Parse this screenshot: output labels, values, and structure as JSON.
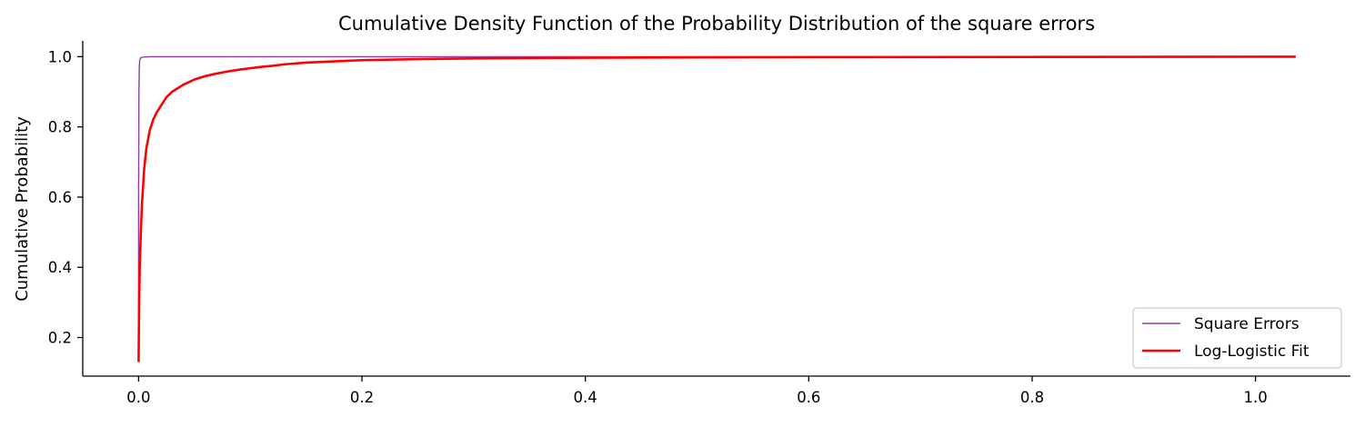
{
  "chart_data": {
    "type": "line",
    "title": "Cumulative Density Function of the Probability Distribution of the square errors",
    "xlabel": "",
    "ylabel": "Cumulative Probability",
    "xlim": [
      -0.05,
      1.085
    ],
    "ylim": [
      0.09,
      1.045
    ],
    "x_ticks": [
      0.0,
      0.2,
      0.4,
      0.6,
      0.8,
      1.0
    ],
    "x_tick_labels": [
      "0.0",
      "0.2",
      "0.4",
      "0.6",
      "0.8",
      "1.0"
    ],
    "y_ticks": [
      0.2,
      0.4,
      0.6,
      0.8,
      1.0
    ],
    "y_tick_labels": [
      "0.2",
      "0.4",
      "0.6",
      "0.8",
      "1.0"
    ],
    "grid": false,
    "legend": {
      "position": "lower-right"
    },
    "series": [
      {
        "name": "Square Errors",
        "color": "#8e3fa0",
        "style": "thin",
        "x": [
          0.0,
          0.0,
          0.0003,
          0.0006,
          0.001,
          0.002,
          0.004,
          0.01,
          0.05,
          0.2,
          0.5,
          1.036
        ],
        "y": [
          0.14,
          0.6,
          0.9,
          0.97,
          0.99,
          0.997,
          0.999,
          1.0,
          1.0,
          1.0,
          1.0,
          1.0
        ]
      },
      {
        "name": "Log-Logistic Fit",
        "color": "#ff0000",
        "style": "thick",
        "x": [
          0.0,
          0.0005,
          0.001,
          0.002,
          0.003,
          0.005,
          0.007,
          0.01,
          0.013,
          0.016,
          0.02,
          0.025,
          0.03,
          0.035,
          0.04,
          0.05,
          0.06,
          0.07,
          0.08,
          0.09,
          0.1,
          0.11,
          0.12,
          0.13,
          0.15,
          0.17,
          0.2,
          0.25,
          0.3,
          0.4,
          0.5,
          0.7,
          1.036
        ],
        "y": [
          0.13,
          0.3,
          0.4,
          0.5,
          0.58,
          0.68,
          0.74,
          0.79,
          0.82,
          0.84,
          0.86,
          0.885,
          0.9,
          0.91,
          0.92,
          0.935,
          0.945,
          0.952,
          0.958,
          0.963,
          0.967,
          0.971,
          0.974,
          0.978,
          0.983,
          0.986,
          0.99,
          0.993,
          0.995,
          0.997,
          0.998,
          0.999,
          1.0
        ]
      }
    ]
  }
}
